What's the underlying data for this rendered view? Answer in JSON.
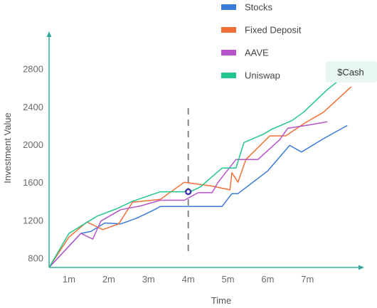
{
  "chart_data": {
    "type": "line",
    "xlabel": "Time",
    "ylabel": "Investment Value",
    "x_ticks": [
      "1m",
      "2m",
      "3m",
      "4m",
      "5m",
      "6m",
      "7m"
    ],
    "y_ticks": [
      800,
      1200,
      1600,
      2000,
      2400,
      2800
    ],
    "xlim": [
      0.5,
      8.3
    ],
    "ylim": [
      700,
      3150
    ],
    "grid": false,
    "legend_position": "top-right",
    "marker_x": 4,
    "marker_value": 1500,
    "badge_label": "$Cash",
    "series": [
      {
        "name": "Stocks",
        "color": "#3a7bd5",
        "points": [
          [
            0.5,
            700
          ],
          [
            1.3,
            1060
          ],
          [
            1.55,
            1080
          ],
          [
            1.9,
            1170
          ],
          [
            2.3,
            1160
          ],
          [
            2.7,
            1220
          ],
          [
            3.1,
            1300
          ],
          [
            3.3,
            1345
          ],
          [
            3.9,
            1345
          ],
          [
            4.5,
            1345
          ],
          [
            4.85,
            1345
          ],
          [
            5.1,
            1480
          ],
          [
            5.25,
            1480
          ],
          [
            6.0,
            1720
          ],
          [
            6.55,
            1990
          ],
          [
            6.85,
            1920
          ],
          [
            7.4,
            2060
          ],
          [
            8.0,
            2200
          ]
        ]
      },
      {
        "name": "Fixed Deposit",
        "color": "#ef6f36",
        "points": [
          [
            0.5,
            700
          ],
          [
            1.0,
            1020
          ],
          [
            1.45,
            1180
          ],
          [
            1.85,
            1100
          ],
          [
            2.25,
            1160
          ],
          [
            2.6,
            1390
          ],
          [
            3.3,
            1420
          ],
          [
            3.9,
            1600
          ],
          [
            4.6,
            1560
          ],
          [
            5.05,
            1520
          ],
          [
            5.1,
            1700
          ],
          [
            5.25,
            1600
          ],
          [
            5.45,
            1840
          ],
          [
            6.05,
            2090
          ],
          [
            6.45,
            2090
          ],
          [
            6.95,
            2230
          ],
          [
            7.4,
            2340
          ],
          [
            8.1,
            2610
          ]
        ]
      },
      {
        "name": "AAVE",
        "color": "#b654c9",
        "points": [
          [
            0.5,
            700
          ],
          [
            1.3,
            1060
          ],
          [
            1.6,
            1000
          ],
          [
            1.8,
            1190
          ],
          [
            2.3,
            1310
          ],
          [
            2.8,
            1350
          ],
          [
            3.3,
            1410
          ],
          [
            3.9,
            1410
          ],
          [
            4.25,
            1490
          ],
          [
            4.6,
            1490
          ],
          [
            4.75,
            1600
          ],
          [
            5.2,
            1840
          ],
          [
            5.75,
            1840
          ],
          [
            6.3,
            2050
          ],
          [
            6.5,
            2170
          ],
          [
            7.1,
            2210
          ],
          [
            7.5,
            2240
          ]
        ]
      },
      {
        "name": "Uniswap",
        "color": "#22c58b",
        "points": [
          [
            0.5,
            700
          ],
          [
            1.0,
            1060
          ],
          [
            1.7,
            1240
          ],
          [
            2.2,
            1320
          ],
          [
            2.6,
            1400
          ],
          [
            3.3,
            1500
          ],
          [
            4.05,
            1500
          ],
          [
            4.3,
            1550
          ],
          [
            4.85,
            1750
          ],
          [
            5.2,
            1750
          ],
          [
            5.4,
            2020
          ],
          [
            5.9,
            2110
          ],
          [
            6.1,
            2160
          ],
          [
            6.6,
            2250
          ],
          [
            6.9,
            2340
          ],
          [
            7.5,
            2580
          ],
          [
            7.95,
            2730
          ]
        ]
      }
    ]
  },
  "colors": {
    "axis": "#38a89d",
    "dashed_line": "#777777",
    "marker_stroke": "#3c3ca8",
    "badge_bg": "#e8f7f1"
  }
}
